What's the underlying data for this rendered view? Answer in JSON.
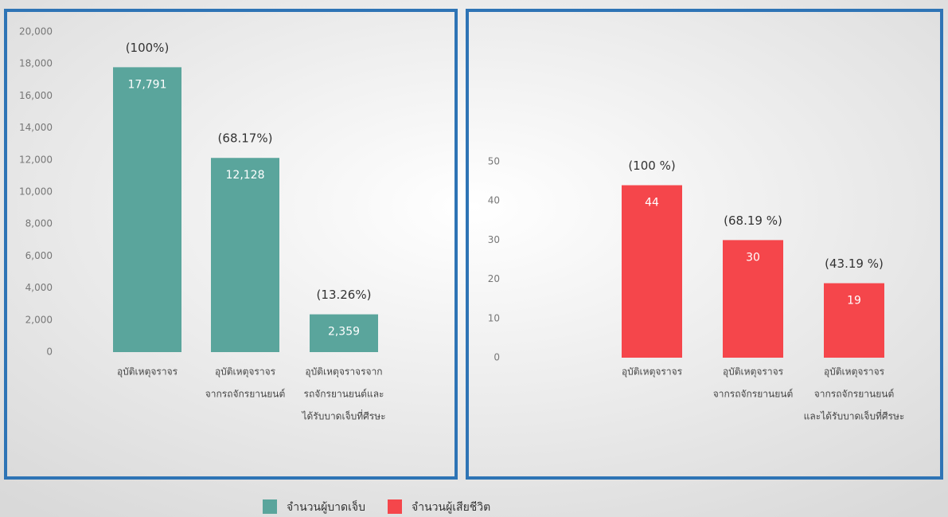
{
  "chart_data": [
    {
      "type": "bar",
      "categories": [
        [
          "อุบัติเหตุจราจร"
        ],
        [
          "อุบัติเหตุจราจร",
          "จากรถจักรยานยนต์"
        ],
        [
          "อุบัติเหตุจราจรจาก",
          "รถจักรยานยนต์และ",
          "ได้รับบาดเจ็บที่ศีรษะ"
        ]
      ],
      "series": [
        {
          "name": "จำนวนผู้บาดเจ็บ",
          "color": "#5aa59c",
          "values": [
            17791,
            12128,
            2359
          ],
          "value_labels": [
            "17,791",
            "12,128",
            "2,359"
          ],
          "annotations": [
            "(100%)",
            "(68.17%)",
            "(13.26%)"
          ]
        }
      ],
      "ylim": [
        0,
        20000
      ],
      "yticks": [
        0,
        {
          "value": 2000,
          "label": "2,000"
        },
        {
          "value": 4000,
          "label": "4,000"
        },
        {
          "value": 6000,
          "label": "6,000"
        },
        {
          "value": 8000,
          "label": "8,000"
        },
        {
          "value": 10000,
          "label": "10,000"
        },
        {
          "value": 12000,
          "label": "12,000"
        },
        {
          "value": 14000,
          "label": "14,000"
        },
        {
          "value": 16000,
          "label": "16,000"
        },
        {
          "value": 18000,
          "label": "18,000"
        },
        {
          "value": 20000,
          "label": "20,000"
        }
      ]
    },
    {
      "type": "bar",
      "categories": [
        [
          "อุบัติเหตุจราจร"
        ],
        [
          "อุบัติเหตุจราจร",
          "จากรถจักรยานยนต์"
        ],
        [
          "อุบัติเหตุจราจร",
          "จากรถจักรยานยนต์",
          "และได้รับบาดเจ็บที่ศีรษะ"
        ]
      ],
      "series": [
        {
          "name": "จำนวนผู้เสียชีวิต",
          "color": "#f5464b",
          "values": [
            44,
            30,
            19
          ],
          "annotations": [
            "(100 %)",
            "(68.19 %)",
            "(43.19 %)"
          ]
        }
      ],
      "ylim": [
        0,
        50
      ],
      "yticks": [
        0,
        10,
        20,
        30,
        40,
        50
      ]
    }
  ]
}
